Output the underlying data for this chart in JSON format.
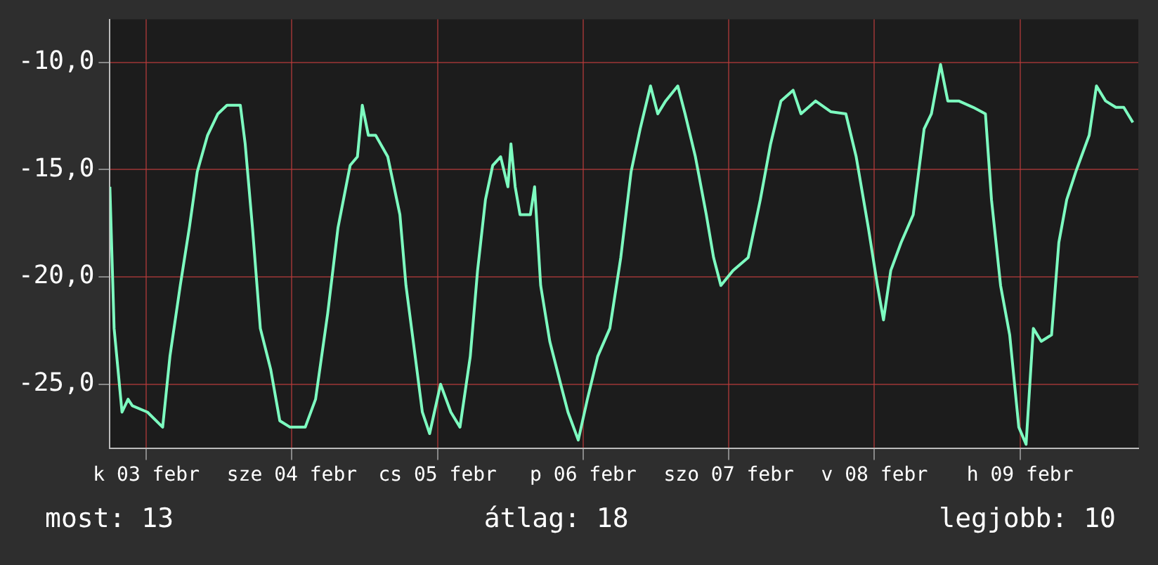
{
  "chart_data": {
    "type": "line",
    "x": [
      "--02-02T18:00",
      "--02-02T18:42",
      "--02-02T20:00",
      "--02-02T21:00",
      "--02-02T21:42",
      "--02-03T00:12",
      "--02-03T02:42",
      "--02-03T03:54",
      "--02-03T05:36",
      "--02-03T07:06",
      "--02-03T08:24",
      "--02-03T10:06",
      "--02-03T11:48",
      "--02-03T13:18",
      "--02-03T15:30",
      "--02-03T16:18",
      "--02-03T17:30",
      "--02-03T18:48",
      "--02-03T20:30",
      "--02-03T22:00",
      "--02-03T23:42",
      "--02-04T02:12",
      "--02-04T03:54",
      "--02-04T05:54",
      "--02-04T07:36",
      "--02-04T09:36",
      "--02-04T10:48",
      "--02-04T11:36",
      "--02-04T12:36",
      "--02-04T13:48",
      "--02-04T15:48",
      "--02-04T17:48",
      "--02-04T18:48",
      "--02-04T20:00",
      "--02-04T21:30",
      "--02-04T22:42",
      "--02-05T00:30",
      "--02-05T02:12",
      "--02-05T03:42",
      "--02-05T05:24",
      "--02-05T06:36",
      "--02-05T07:54",
      "--02-05T09:06",
      "--02-05T10:24",
      "--02-05T11:36",
      "--02-05T12:06",
      "--02-05T12:48",
      "--02-05T13:36",
      "--02-05T15:18",
      "--02-05T16:00",
      "--02-05T17:00",
      "--02-05T18:30",
      "--02-05T20:18",
      "--02-05T21:30",
      "--02-05T23:12",
      "--02-06T00:42",
      "--02-06T02:24",
      "--02-06T04:24",
      "--02-06T06:12",
      "--02-06T07:54",
      "--02-06T09:24",
      "--02-06T11:06",
      "--02-06T12:18",
      "--02-06T13:36",
      "--02-06T15:36",
      "--02-06T16:48",
      "--02-06T18:30",
      "--02-06T20:18",
      "--02-06T21:30",
      "--02-06T22:42",
      "--02-07T00:42",
      "--02-07T03:12",
      "--02-07T05:12",
      "--02-07T06:54",
      "--02-07T08:36",
      "--02-07T10:36",
      "--02-07T11:54",
      "--02-07T14:18",
      "--02-07T16:48",
      "--02-07T19:18",
      "--02-07T21:00",
      "--02-07T23:00",
      "--02-08T00:30",
      "--02-08T01:30",
      "--02-08T02:42",
      "--02-08T04:24",
      "--02-08T06:24",
      "--02-08T08:12",
      "--02-08T09:24",
      "--02-08T10:54",
      "--02-08T12:06",
      "--02-08T13:54",
      "--02-08T16:18",
      "--02-08T18:18",
      "--02-08T19:18",
      "--02-08T20:48",
      "--02-08T22:18",
      "--02-08T23:48",
      "--02-09T01:00",
      "--02-09T02:12",
      "--02-09T03:30",
      "--02-09T05:12",
      "--02-09T06:24",
      "--02-09T07:42",
      "--02-09T09:12",
      "--02-09T10:06",
      "--02-09T11:24",
      "--02-09T12:36",
      "--02-09T14:06",
      "--02-09T15:48",
      "--02-09T17:06",
      "--02-09T18:36"
    ],
    "series": [
      {
        "color": "#7dfcc0",
        "values": [
          -15.8,
          -22.4,
          -26.3,
          -25.7,
          -26.0,
          -26.3,
          -27.0,
          -23.7,
          -20.4,
          -17.7,
          -15.1,
          -13.4,
          -12.4,
          -12.0,
          -12.0,
          -13.8,
          -17.7,
          -22.4,
          -24.3,
          -26.7,
          -27.0,
          -27.0,
          -25.7,
          -21.7,
          -17.7,
          -14.8,
          -14.4,
          -12.0,
          -13.4,
          -13.4,
          -14.4,
          -17.1,
          -20.4,
          -23.0,
          -26.3,
          -27.3,
          -25.0,
          -26.3,
          -27.0,
          -23.7,
          -19.7,
          -16.4,
          -14.8,
          -14.4,
          -15.8,
          -13.8,
          -15.8,
          -17.1,
          -17.1,
          -15.8,
          -20.4,
          -23.0,
          -25.0,
          -26.3,
          -27.6,
          -25.7,
          -23.7,
          -22.4,
          -19.1,
          -15.1,
          -13.1,
          -11.1,
          -12.4,
          -11.8,
          -11.1,
          -12.4,
          -14.4,
          -17.1,
          -19.1,
          -20.4,
          -19.7,
          -19.1,
          -16.4,
          -13.8,
          -11.8,
          -11.3,
          -12.4,
          -11.8,
          -12.3,
          -12.4,
          -14.4,
          -17.7,
          -20.4,
          -22.0,
          -19.7,
          -18.4,
          -17.1,
          -13.1,
          -12.4,
          -10.1,
          -11.8,
          -11.8,
          -12.1,
          -12.4,
          -16.4,
          -20.4,
          -22.7,
          -27.0,
          -27.8,
          -22.4,
          -23.0,
          -22.7,
          -18.4,
          -16.4,
          -15.1,
          -14.4,
          -13.4,
          -11.1,
          -11.8,
          -12.1,
          -12.1,
          -12.8
        ]
      }
    ],
    "xlim": [
      "--02-02T18:00",
      "--02-09T19:30"
    ],
    "xticks": [
      {
        "value": "--02-03",
        "label": "k 03 febr"
      },
      {
        "value": "--02-04",
        "label": "sze 04 febr"
      },
      {
        "value": "--02-05",
        "label": "cs 05 febr"
      },
      {
        "value": "--02-06",
        "label": "p 06 febr"
      },
      {
        "value": "--02-07",
        "label": "szo 07 febr"
      },
      {
        "value": "--02-08",
        "label": "v 08 febr"
      },
      {
        "value": "--02-09",
        "label": "h 09 febr"
      }
    ],
    "ylim": [
      -28,
      -8
    ],
    "yticks": [
      {
        "value": -10,
        "label": "-10,0"
      },
      {
        "value": -15,
        "label": "-15,0"
      },
      {
        "value": -20,
        "label": "-20,0"
      },
      {
        "value": -25,
        "label": "-25,0"
      }
    ],
    "grid": true,
    "marker": "none",
    "line_style": "solid",
    "annotations": [
      "most: 13",
      "átlag: 18",
      "legjobb: 10"
    ]
  }
}
